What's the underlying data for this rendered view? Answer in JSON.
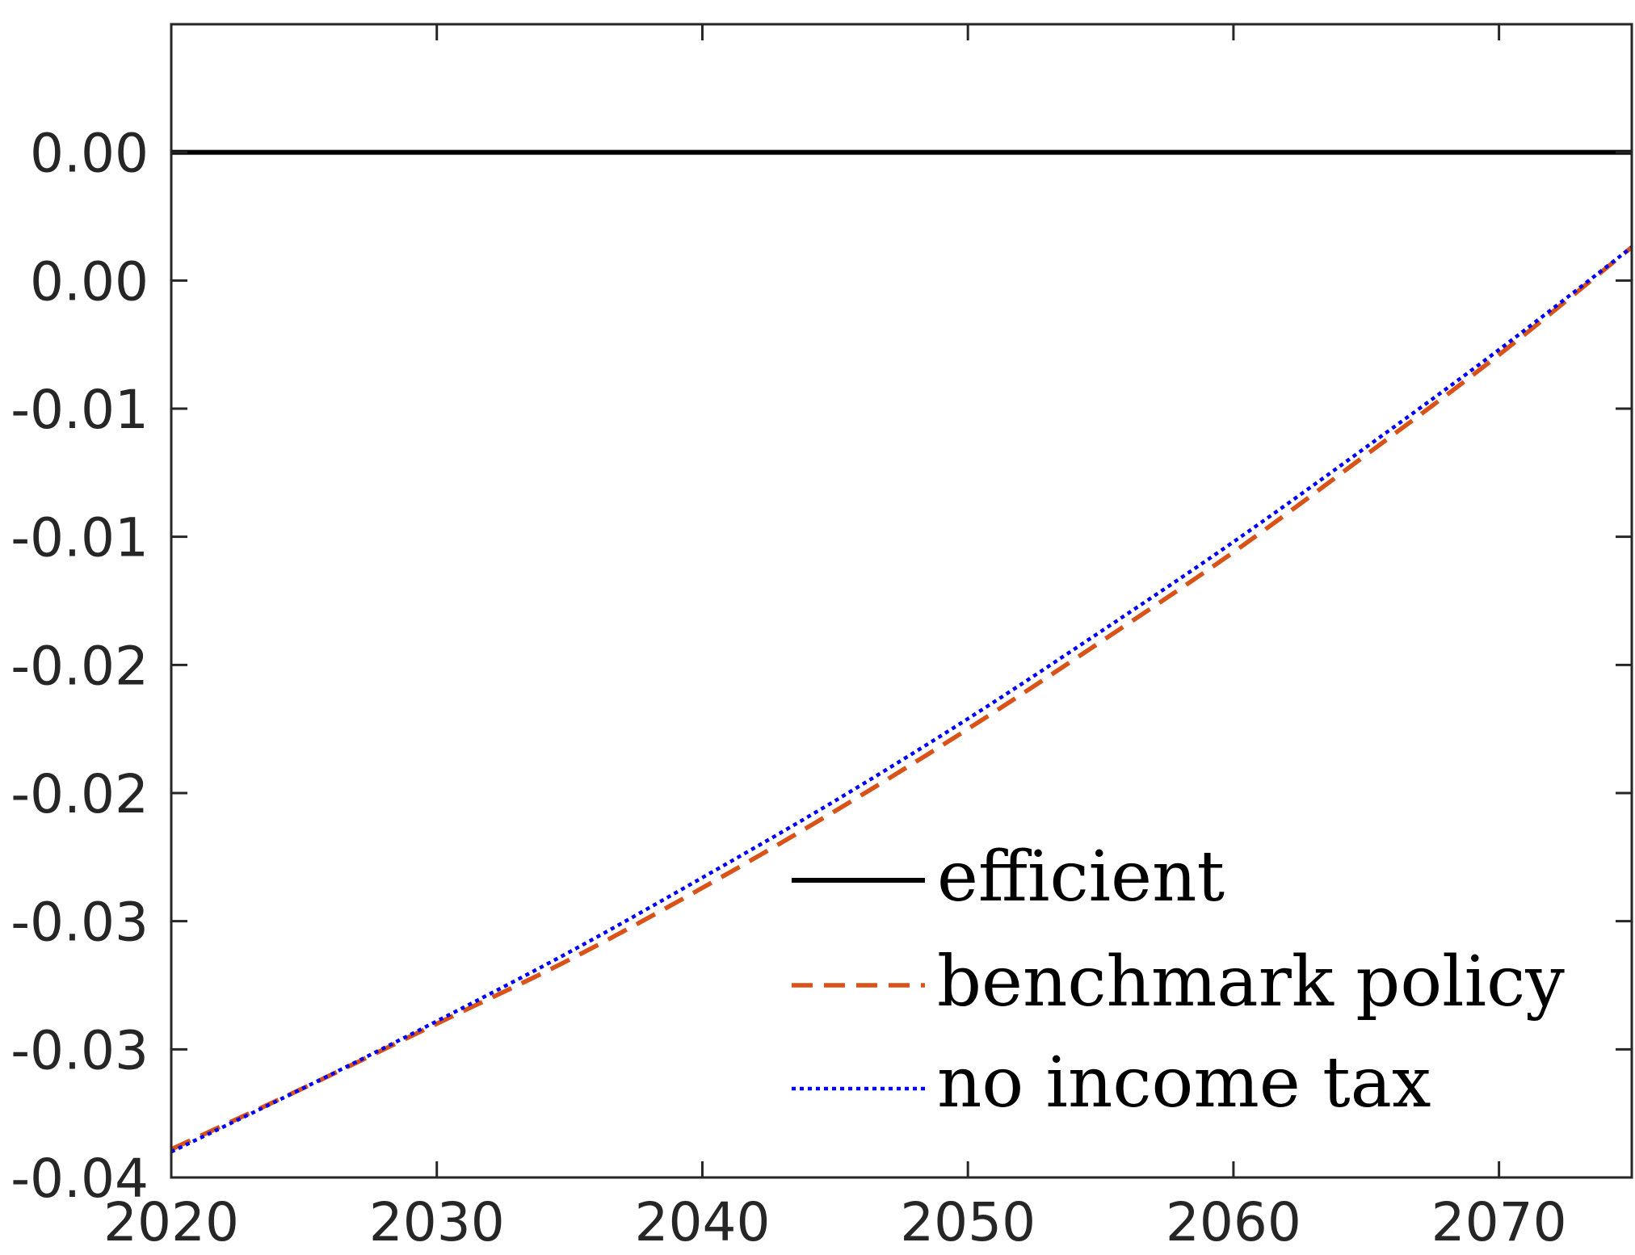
{
  "chart_data": {
    "type": "line",
    "title": "",
    "xlabel": "",
    "ylabel": "",
    "xlim": [
      2020,
      2075
    ],
    "ylim": [
      -0.04,
      0.0
    ],
    "x_ticks": [
      2020,
      2030,
      2040,
      2050,
      2060,
      2070
    ],
    "x_tick_labels": [
      "2020",
      "2030",
      "2040",
      "2050",
      "2060",
      "2070"
    ],
    "y_ticks": [
      -0.04,
      -0.035,
      -0.03,
      -0.025,
      -0.02,
      -0.015,
      -0.01,
      -0.005,
      0.0,
      0.005
    ],
    "y_tick_labels": [
      "-0.04",
      "-0.03",
      "-0.03",
      "-0.02",
      "-0.02",
      "-0.01",
      "-0.01",
      "0.00",
      "0.00"
    ],
    "grid": false,
    "legend_position": "bottom-right",
    "x": [
      2020,
      2025,
      2030,
      2035,
      2040,
      2045,
      2050,
      2055,
      2060,
      2065,
      2070,
      2075
    ],
    "series": [
      {
        "name": "efficient",
        "color": "#000000",
        "dash": "solid",
        "values": [
          0.0,
          0.0,
          0.0,
          0.0,
          0.0,
          0.0,
          0.0,
          0.0,
          0.0,
          0.0,
          0.0,
          0.0
        ]
      },
      {
        "name": "benchmark policy",
        "color": "#D95319",
        "dash": "dashed",
        "values": [
          -0.0389,
          -0.0365,
          -0.034,
          -0.0315,
          -0.0287,
          -0.0257,
          -0.0225,
          -0.0191,
          -0.0156,
          -0.0118,
          -0.0079,
          -0.0037
        ]
      },
      {
        "name": "no income tax",
        "color": "#0000FF",
        "dash": "dotted",
        "values": [
          -0.039,
          -0.0365,
          -0.0339,
          -0.0312,
          -0.0283,
          -0.0253,
          -0.0221,
          -0.0187,
          -0.0152,
          -0.0115,
          -0.0077,
          -0.0037
        ]
      }
    ]
  }
}
